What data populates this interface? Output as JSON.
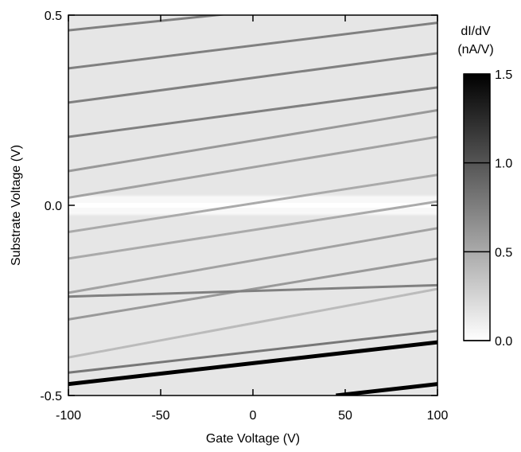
{
  "chart_data": {
    "type": "heatmap",
    "title": "",
    "xlabel": "Gate Voltage (V)",
    "ylabel": "Substrate Voltage (V)",
    "xlim": [
      -100,
      100
    ],
    "ylim": [
      -0.5,
      0.5
    ],
    "x_ticks": [
      -100,
      -50,
      0,
      50,
      100
    ],
    "x_tick_labels": [
      "-100",
      "-50",
      "0",
      "50",
      "100"
    ],
    "y_ticks": [
      -0.5,
      0.0,
      0.5
    ],
    "y_tick_labels": [
      "-0.5",
      "0.0",
      "0.5"
    ],
    "colorbar": {
      "label_line1": "dI/dV",
      "label_line2": "(nA/V)",
      "range": [
        0.0,
        1.5
      ],
      "ticks": [
        0.0,
        0.5,
        1.0,
        1.5
      ],
      "tick_labels": [
        "0.0",
        "0.5",
        "1.0",
        "1.5"
      ],
      "colormap": "white-to-black grayscale"
    },
    "background_level": 0.15,
    "zero_bias_gap": {
      "y": 0.0,
      "value": 0.0
    },
    "grid": false,
    "lines": [
      {
        "x": [
          -100,
          100
        ],
        "y": [
          0.46,
          0.56
        ],
        "value": 0.75
      },
      {
        "x": [
          -100,
          100
        ],
        "y": [
          0.36,
          0.48
        ],
        "value": 0.75
      },
      {
        "x": [
          -100,
          100
        ],
        "y": [
          0.27,
          0.4
        ],
        "value": 0.75
      },
      {
        "x": [
          -100,
          100
        ],
        "y": [
          0.18,
          0.31
        ],
        "value": 0.75
      },
      {
        "x": [
          -100,
          100
        ],
        "y": [
          0.09,
          0.25
        ],
        "value": 0.6
      },
      {
        "x": [
          -100,
          100
        ],
        "y": [
          0.02,
          0.18
        ],
        "value": 0.55
      },
      {
        "x": [
          -100,
          100
        ],
        "y": [
          -0.07,
          0.08
        ],
        "value": 0.5
      },
      {
        "x": [
          -100,
          100
        ],
        "y": [
          -0.14,
          0.01
        ],
        "value": 0.5
      },
      {
        "x": [
          -100,
          100
        ],
        "y": [
          -0.23,
          -0.06
        ],
        "value": 0.55
      },
      {
        "x": [
          -100,
          100
        ],
        "y": [
          -0.3,
          -0.14
        ],
        "value": 0.6
      },
      {
        "x": [
          -100,
          100
        ],
        "y": [
          -0.24,
          -0.21
        ],
        "value": 0.75
      },
      {
        "x": [
          -100,
          100
        ],
        "y": [
          -0.4,
          -0.22
        ],
        "value": 0.4
      },
      {
        "x": [
          -100,
          100
        ],
        "y": [
          -0.44,
          -0.33
        ],
        "value": 0.8
      },
      {
        "x": [
          -100,
          100
        ],
        "y": [
          -0.47,
          -0.36
        ],
        "value": 1.5
      },
      {
        "x": [
          45,
          100
        ],
        "y": [
          -0.5,
          -0.47
        ],
        "value": 1.5
      }
    ]
  }
}
